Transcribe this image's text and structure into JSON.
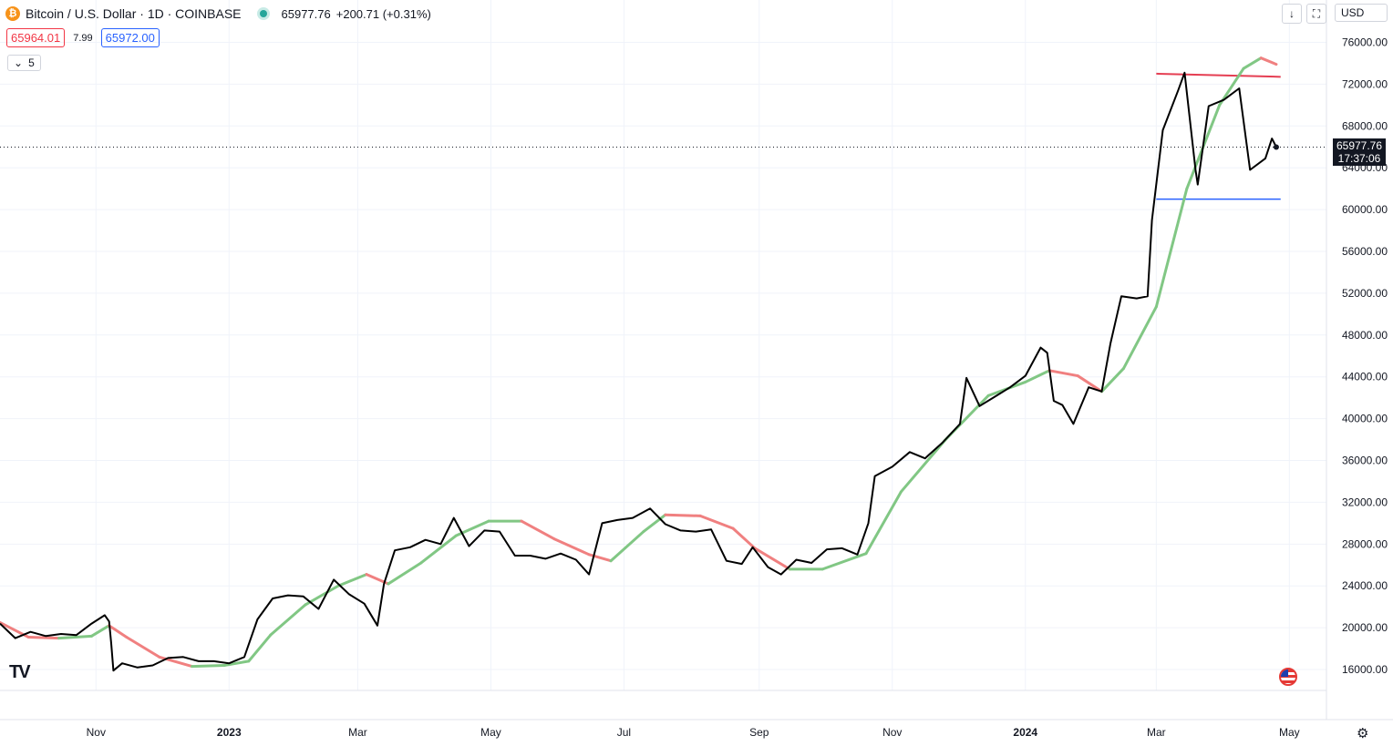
{
  "header": {
    "title": "Bitcoin / U.S. Dollar · 1D · COINBASE",
    "coin_symbol": "₿",
    "price": "65977.76",
    "change": "+200.71 (+0.31%)",
    "bid": "65964.01",
    "spread": "7.99",
    "ask": "65972.00",
    "indicator_value": "5"
  },
  "toolbar": {
    "currency": "USD"
  },
  "last_price_label": {
    "price": "65977.76",
    "countdown": "17:37:06"
  },
  "colors": {
    "price_line": "#000000",
    "ma_up": "#81c784",
    "ma_down": "#f08080",
    "resistance": "#e53e52",
    "support": "#2962ff"
  },
  "chart_data": {
    "type": "line",
    "y_axis_ticks": [
      "76000.00",
      "72000.00",
      "68000.00",
      "64000.00",
      "60000.00",
      "56000.00",
      "52000.00",
      "48000.00",
      "44000.00",
      "40000.00",
      "36000.00",
      "32000.00",
      "28000.00",
      "24000.00",
      "20000.00",
      "16000.00"
    ],
    "x_axis_labels": [
      "Nov",
      "2023",
      "Mar",
      "May",
      "Jul",
      "Sep",
      "Nov",
      "2024",
      "Mar",
      "May"
    ],
    "ylim": [
      14000,
      77000
    ],
    "xlim": [
      "2022-09-18",
      "2024-05-18"
    ],
    "grid": true,
    "series": [
      {
        "values": [
          [
            "2022-09-18",
            20400
          ],
          [
            "2022-09-25",
            19000
          ],
          [
            "2022-10-02",
            19600
          ],
          [
            "2022-10-09",
            19200
          ],
          [
            "2022-10-16",
            19400
          ],
          [
            "2022-10-23",
            19300
          ],
          [
            "2022-10-30",
            20400
          ],
          [
            "2022-11-05",
            21200
          ],
          [
            "2022-11-07",
            20600
          ],
          [
            "2022-11-08",
            18500
          ],
          [
            "2022-11-09",
            15900
          ],
          [
            "2022-11-13",
            16600
          ],
          [
            "2022-11-20",
            16200
          ],
          [
            "2022-11-27",
            16400
          ],
          [
            "2022-12-04",
            17100
          ],
          [
            "2022-12-11",
            17200
          ],
          [
            "2022-12-18",
            16800
          ],
          [
            "2022-12-25",
            16800
          ],
          [
            "2023-01-01",
            16600
          ],
          [
            "2023-01-08",
            17200
          ],
          [
            "2023-01-14",
            20800
          ],
          [
            "2023-01-21",
            22800
          ],
          [
            "2023-01-28",
            23100
          ],
          [
            "2023-02-04",
            23000
          ],
          [
            "2023-02-11",
            21800
          ],
          [
            "2023-02-18",
            24600
          ],
          [
            "2023-02-25",
            23200
          ],
          [
            "2023-03-04",
            22300
          ],
          [
            "2023-03-10",
            20200
          ],
          [
            "2023-03-13",
            24200
          ],
          [
            "2023-03-18",
            27400
          ],
          [
            "2023-03-25",
            27700
          ],
          [
            "2023-04-01",
            28400
          ],
          [
            "2023-04-08",
            28000
          ],
          [
            "2023-04-14",
            30500
          ],
          [
            "2023-04-21",
            27800
          ],
          [
            "2023-04-28",
            29300
          ],
          [
            "2023-05-05",
            29200
          ],
          [
            "2023-05-12",
            26900
          ],
          [
            "2023-05-19",
            26900
          ],
          [
            "2023-05-26",
            26600
          ],
          [
            "2023-06-02",
            27100
          ],
          [
            "2023-06-09",
            26500
          ],
          [
            "2023-06-15",
            25100
          ],
          [
            "2023-06-21",
            30000
          ],
          [
            "2023-06-28",
            30300
          ],
          [
            "2023-07-05",
            30500
          ],
          [
            "2023-07-13",
            31400
          ],
          [
            "2023-07-20",
            29900
          ],
          [
            "2023-07-27",
            29300
          ],
          [
            "2023-08-03",
            29200
          ],
          [
            "2023-08-10",
            29400
          ],
          [
            "2023-08-17",
            26400
          ],
          [
            "2023-08-24",
            26100
          ],
          [
            "2023-08-29",
            27700
          ],
          [
            "2023-09-05",
            25800
          ],
          [
            "2023-09-11",
            25100
          ],
          [
            "2023-09-18",
            26500
          ],
          [
            "2023-09-25",
            26200
          ],
          [
            "2023-10-02",
            27500
          ],
          [
            "2023-10-09",
            27600
          ],
          [
            "2023-10-16",
            27000
          ],
          [
            "2023-10-21",
            30000
          ],
          [
            "2023-10-24",
            34500
          ],
          [
            "2023-11-01",
            35400
          ],
          [
            "2023-11-09",
            36800
          ],
          [
            "2023-11-16",
            36200
          ],
          [
            "2023-11-24",
            37700
          ],
          [
            "2023-12-02",
            39500
          ],
          [
            "2023-12-05",
            43900
          ],
          [
            "2023-12-11",
            41200
          ],
          [
            "2023-12-18",
            42100
          ],
          [
            "2023-12-25",
            43000
          ],
          [
            "2024-01-01",
            44100
          ],
          [
            "2024-01-08",
            46800
          ],
          [
            "2024-01-11",
            46300
          ],
          [
            "2024-01-14",
            41700
          ],
          [
            "2024-01-18",
            41300
          ],
          [
            "2024-01-23",
            39500
          ],
          [
            "2024-01-30",
            43000
          ],
          [
            "2024-02-05",
            42600
          ],
          [
            "2024-02-09",
            47200
          ],
          [
            "2024-02-14",
            51700
          ],
          [
            "2024-02-21",
            51500
          ],
          [
            "2024-02-26",
            51700
          ],
          [
            "2024-02-28",
            59000
          ],
          [
            "2024-03-04",
            67600
          ],
          [
            "2024-03-11",
            71400
          ],
          [
            "2024-03-14",
            73100
          ],
          [
            "2024-03-19",
            63800
          ],
          [
            "2024-03-20",
            62400
          ],
          [
            "2024-03-25",
            69900
          ],
          [
            "2024-04-01",
            70500
          ],
          [
            "2024-04-08",
            71600
          ],
          [
            "2024-04-13",
            63800
          ],
          [
            "2024-04-20",
            64900
          ],
          [
            "2024-04-23",
            66800
          ],
          [
            "2024-04-25",
            65977.76
          ]
        ]
      },
      {
        "values": [
          [
            "2022-09-18",
            20500
          ],
          [
            "2022-10-01",
            19100
          ],
          [
            "2022-10-15",
            19000
          ],
          [
            "2022-10-30",
            19200
          ],
          [
            "2022-11-07",
            20200
          ],
          [
            "2022-11-15",
            19100
          ],
          [
            "2022-11-30",
            17200
          ],
          [
            "2022-12-15",
            16300
          ],
          [
            "2022-12-30",
            16400
          ],
          [
            "2023-01-10",
            16800
          ],
          [
            "2023-01-20",
            19300
          ],
          [
            "2023-02-05",
            22200
          ],
          [
            "2023-02-20",
            24000
          ],
          [
            "2023-03-05",
            25100
          ],
          [
            "2023-03-15",
            24200
          ],
          [
            "2023-03-30",
            26200
          ],
          [
            "2023-04-15",
            28800
          ],
          [
            "2023-04-30",
            30200
          ],
          [
            "2023-05-15",
            30200
          ],
          [
            "2023-05-30",
            28500
          ],
          [
            "2023-06-15",
            27000
          ],
          [
            "2023-06-25",
            26400
          ],
          [
            "2023-07-10",
            29200
          ],
          [
            "2023-07-20",
            30800
          ],
          [
            "2023-08-05",
            30700
          ],
          [
            "2023-08-20",
            29500
          ],
          [
            "2023-08-30",
            27600
          ],
          [
            "2023-09-15",
            25600
          ],
          [
            "2023-09-30",
            25600
          ],
          [
            "2023-10-20",
            27100
          ],
          [
            "2023-11-05",
            33000
          ],
          [
            "2023-11-25",
            37900
          ],
          [
            "2023-12-15",
            42200
          ],
          [
            "2024-01-01",
            43500
          ],
          [
            "2024-01-12",
            44600
          ],
          [
            "2024-01-25",
            44100
          ],
          [
            "2024-02-05",
            42600
          ],
          [
            "2024-02-15",
            44800
          ],
          [
            "2024-03-01",
            50700
          ],
          [
            "2024-03-15",
            62000
          ],
          [
            "2024-03-30",
            70000
          ],
          [
            "2024-04-10",
            73500
          ],
          [
            "2024-04-18",
            74500
          ],
          [
            "2024-04-25",
            73900
          ]
        ]
      }
    ],
    "horizontal_lines": {
      "resistance": [
        73000,
        72700
      ],
      "support": 61000,
      "last_price": 65977.76
    }
  }
}
